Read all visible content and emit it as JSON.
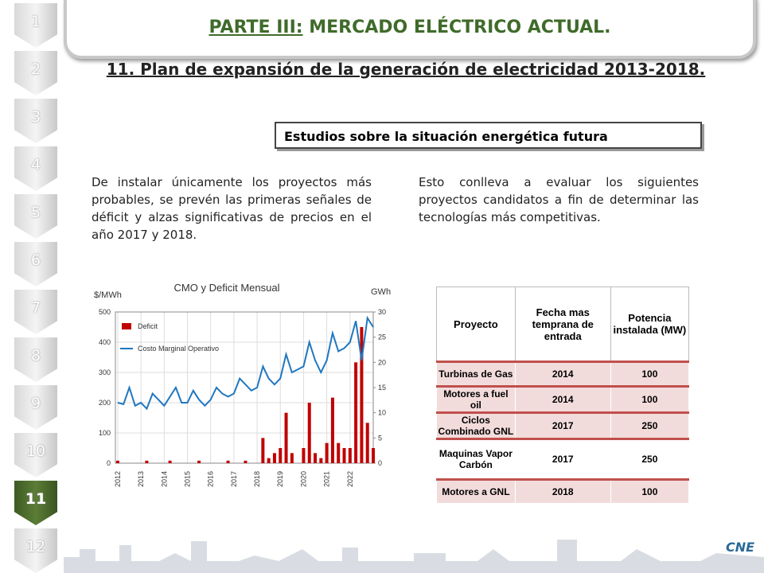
{
  "nav": {
    "items": [
      "1",
      "2",
      "3",
      "4",
      "5",
      "6",
      "7",
      "8",
      "9",
      "10",
      "11",
      "12"
    ]
  },
  "header": {
    "section": "PARTE III:",
    "title": "MERCADO ELÉCTRICO ACTUAL."
  },
  "heading": "11. Plan de expansión de la generación de electricidad 2013-2018.",
  "box": "Estudios sobre la situación energética futura",
  "paragraphs": [
    "De instalar únicamente los proyectos más probables, se prevén las primeras señales de déficit y alzas significativas de precios en el año 2017 y 2018.",
    "Esto conlleva a evaluar los siguientes proyectos candidatos a fin de determinar las tecnologías más competitivas."
  ],
  "chart_data": {
    "type": "bar_line",
    "title": "CMO y Deficit Mensual",
    "y_label": "$/MWh",
    "y2_label": "GWh",
    "x": [
      2012,
      2012.25,
      2012.5,
      2012.75,
      2013,
      2013.25,
      2013.5,
      2013.75,
      2014,
      2014.25,
      2014.5,
      2014.75,
      2015,
      2015.25,
      2015.5,
      2015.75,
      2016,
      2016.25,
      2016.5,
      2016.75,
      2017,
      2017.25,
      2017.5,
      2017.75,
      2018,
      2018.25,
      2018.5,
      2018.75,
      2019,
      2019.25,
      2019.5,
      2019.75,
      2020,
      2020.25,
      2020.5,
      2020.75,
      2021,
      2021.25,
      2021.5,
      2021.75,
      2022,
      2022.25,
      2022.5,
      2022.75,
      2023
    ],
    "xlim": [
      2011.9,
      2023.0
    ],
    "xticks": [
      2012,
      2013,
      2014,
      2015,
      2016,
      2017,
      2018,
      2019,
      2020,
      2021,
      2022
    ],
    "ylim": [
      0,
      500
    ],
    "yticks": [
      0,
      100,
      200,
      300,
      400,
      500
    ],
    "y2lim": [
      0,
      30
    ],
    "y2ticks": [
      0,
      5,
      10,
      15,
      20,
      25,
      30
    ],
    "series": [
      {
        "name": "Deficit",
        "color": "#c00000",
        "axis": "y2",
        "values": [
          0.5,
          0,
          0,
          0,
          0,
          0.5,
          0,
          0,
          0,
          0.5,
          0,
          0,
          0,
          0,
          0.5,
          0,
          0,
          0,
          0,
          0.5,
          0,
          0,
          0.5,
          0,
          0,
          5,
          1,
          2,
          3,
          10,
          2,
          0,
          3,
          12,
          2,
          1,
          4,
          13,
          4,
          3,
          3,
          20,
          27,
          8,
          3
        ]
      },
      {
        "name": "Costo Marginal Operativo",
        "color": "#1f77c0",
        "values": [
          200,
          195,
          250,
          190,
          200,
          180,
          230,
          210,
          190,
          220,
          250,
          200,
          200,
          240,
          210,
          190,
          210,
          250,
          230,
          220,
          230,
          280,
          260,
          240,
          250,
          320,
          280,
          260,
          280,
          360,
          300,
          310,
          320,
          400,
          340,
          300,
          340,
          430,
          370,
          380,
          400,
          470,
          340,
          480,
          450
        ]
      }
    ]
  },
  "table": {
    "headers": [
      "Proyecto",
      "Fecha mas temprana de entrada",
      "Potencia instalada (MW)"
    ],
    "rows": [
      [
        "Turbinas de Gas",
        "2014",
        "100"
      ],
      [
        "Motores a fuel oil",
        "2014",
        "100"
      ],
      [
        "Ciclos Combinado  GNL",
        "2017",
        "250"
      ],
      [
        "Maquinas Vapor Carbón",
        "2017",
        "250"
      ],
      [
        "Motores a GNL",
        "2018",
        "100"
      ]
    ]
  },
  "logo": "CNE"
}
